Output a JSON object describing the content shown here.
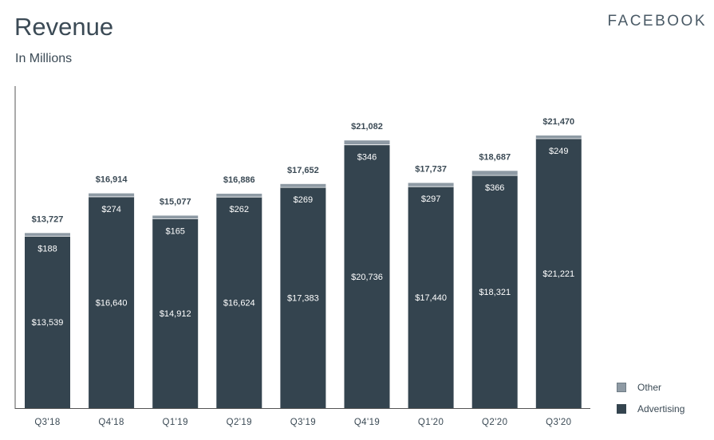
{
  "header": {
    "title": "Revenue",
    "subtitle": "In Millions",
    "brand": "FACEBOOK"
  },
  "colors": {
    "advertising": "#34444f",
    "other": "#8e9aa4",
    "text": "#3b4a55",
    "axis": "#555555"
  },
  "chart_data": {
    "type": "bar",
    "stacked": true,
    "title": "Revenue",
    "subtitle": "In Millions",
    "categories": [
      "Q3'18",
      "Q4'18",
      "Q1'19",
      "Q2'19",
      "Q3'19",
      "Q4'19",
      "Q1'20",
      "Q2'20",
      "Q3'20"
    ],
    "series": [
      {
        "name": "Advertising",
        "values": [
          13539,
          16640,
          14912,
          16624,
          17383,
          20736,
          17440,
          18321,
          21221
        ],
        "labels": [
          "$13,539",
          "$16,640",
          "$14,912",
          "$16,624",
          "$17,383",
          "$20,736",
          "$17,440",
          "$18,321",
          "$21,221"
        ]
      },
      {
        "name": "Other",
        "values": [
          188,
          274,
          165,
          262,
          269,
          346,
          297,
          366,
          249
        ],
        "labels": [
          "$188",
          "$274",
          "$165",
          "$262",
          "$269",
          "$346",
          "$297",
          "$366",
          "$249"
        ]
      }
    ],
    "totals": [
      13727,
      16914,
      15077,
      16886,
      17652,
      21082,
      17737,
      18687,
      21470
    ],
    "total_labels": [
      "$13,727",
      "$16,914",
      "$15,077",
      "$16,886",
      "$17,652",
      "$21,082",
      "$17,737",
      "$18,687",
      "$21,470"
    ],
    "ylim": [
      0,
      21470
    ],
    "grid": false,
    "legend_position": "bottom-right"
  },
  "legend": {
    "items": [
      {
        "label": "Other"
      },
      {
        "label": "Advertising"
      }
    ]
  }
}
